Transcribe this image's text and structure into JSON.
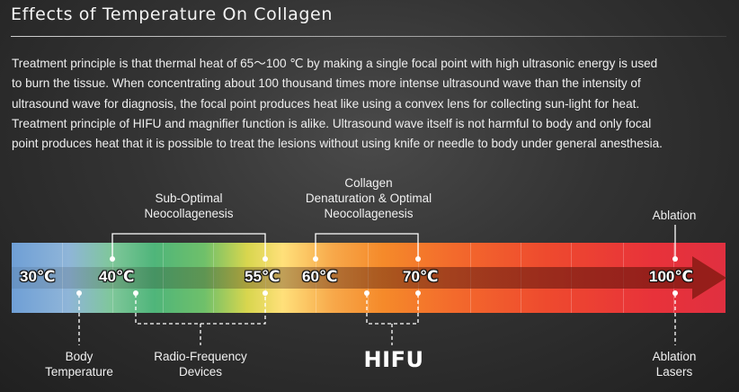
{
  "title": "Effects of Temperature On Collagen",
  "description": [
    "Treatment  principle is that thermal heat of 65～100 ℃ by making a single focal point with high ultrasonic energy is used",
    "to burn the tissue. When concentrating about 100 thousand times more intense ultrasound wave than the intensity of",
    "ultrasound wave for diagnosis, the focal point produces heat like using a convex lens for collecting sun-light for heat.",
    "Treatment principle of HIFU and magnifier function is alike. Ultrasound wave itself is not harmful to body and only focal",
    "point produces heat that it is possible to treat the lesions without using knife or needle to body under general anesthesia."
  ],
  "temperatures": {
    "t30": "30℃",
    "t40": "40℃",
    "t55": "55℃",
    "t60": "60℃",
    "t70": "70℃",
    "t100": "100℃"
  },
  "top_labels": {
    "sub_optimal": [
      "Sub-Optimal",
      "Neocollagenesis"
    ],
    "collagen": [
      "Collagen",
      "Denaturation & Optimal",
      "Neocollagenesis"
    ],
    "ablation": "Ablation"
  },
  "bottom_labels": {
    "body": [
      "Body",
      "Temperature"
    ],
    "rf": [
      "Radio-Frequency",
      "Devices"
    ],
    "hifu": "HIFU",
    "ablation_lasers": [
      "Ablation",
      "Lasers"
    ]
  },
  "colors": {
    "bar_start": "#6f9fd6",
    "bar_green": "#4fb57a",
    "bar_yellow": "#ffe07a",
    "bar_orange": "#f58a2a",
    "bar_red": "#e03040",
    "arrow": "#8a1a12"
  }
}
